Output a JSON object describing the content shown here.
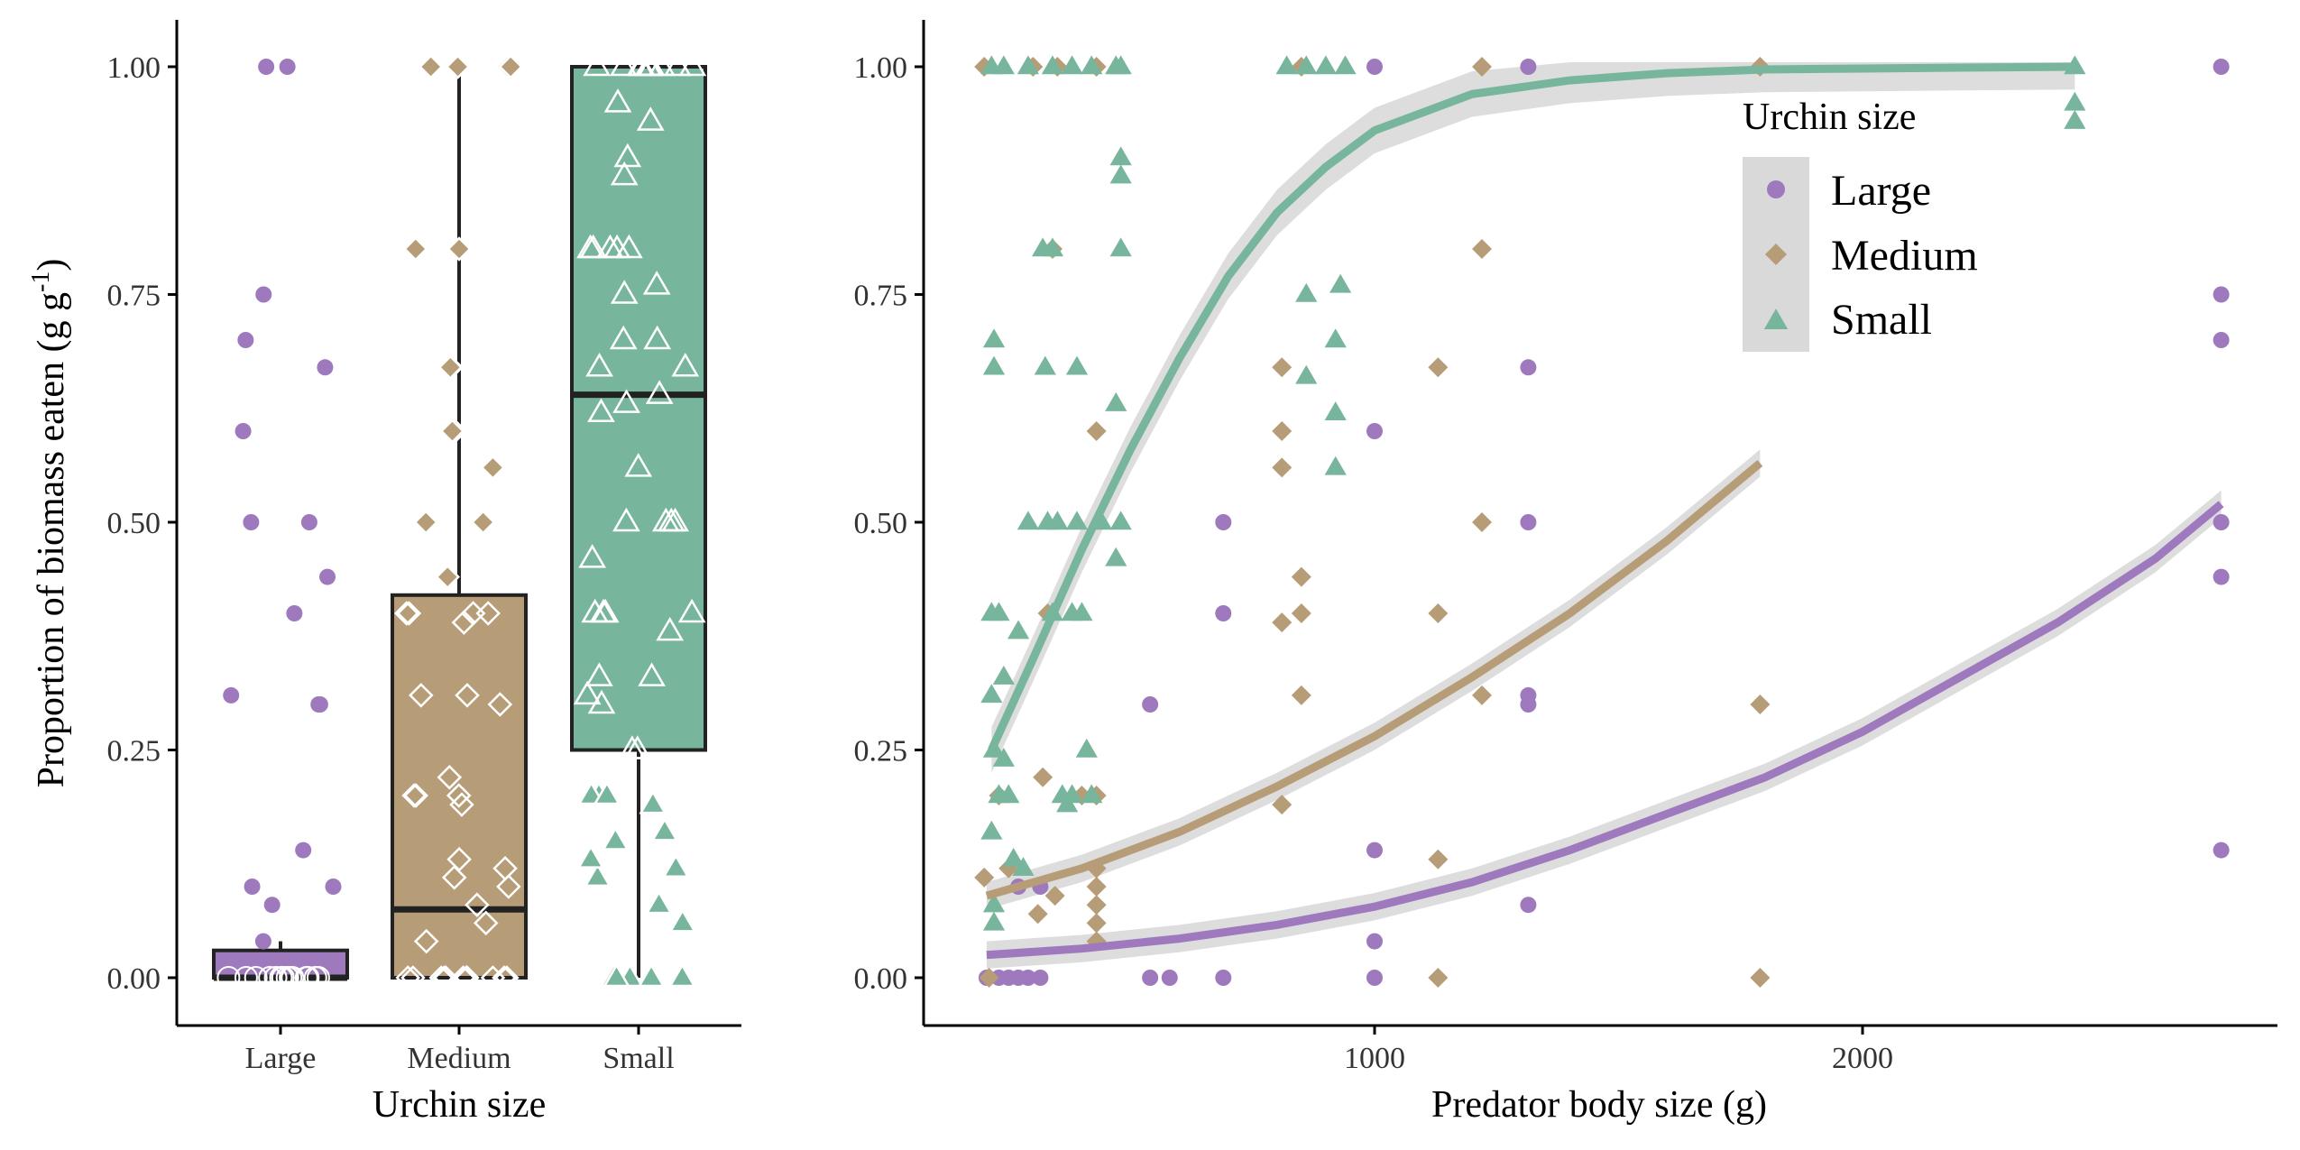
{
  "colors": {
    "Large": "#9e79bd",
    "Medium": "#b69d77",
    "Small": "#77b59c"
  },
  "chart_data": [
    {
      "type": "box",
      "xlabel": "Urchin size",
      "ylabel": "Proportion of biomass eaten (g g",
      "ylabel_sup": "-1",
      "ylabel_close": ")",
      "ylim": [
        0,
        1
      ],
      "yticks": [
        "0.00",
        "0.25",
        "0.50",
        "0.75",
        "1.00"
      ],
      "categories": [
        "Large",
        "Medium",
        "Small"
      ],
      "boxes": [
        {
          "name": "Large",
          "min": 0,
          "q1": 0,
          "median": 0,
          "q3": 0.03,
          "max": 0.04
        },
        {
          "name": "Medium",
          "min": 0,
          "q1": 0,
          "median": 0.075,
          "q3": 0.42,
          "max": 1.0
        },
        {
          "name": "Small",
          "min": 0,
          "q1": 0.25,
          "median": 0.64,
          "q3": 1.0,
          "max": 1.0
        }
      ],
      "points": {
        "Large": [
          0,
          0,
          0,
          0,
          0,
          0,
          0,
          0,
          0,
          0,
          0,
          0,
          0,
          0,
          0,
          0.04,
          0.08,
          0.1,
          0.1,
          0.14,
          0.3,
          0.3,
          0.31,
          0.4,
          0.44,
          0.5,
          0.5,
          0.6,
          0.67,
          0.7,
          0.75,
          1.0,
          1.0
        ],
        "Medium": [
          0,
          0,
          0,
          0,
          0,
          0,
          0,
          0,
          0,
          0,
          0,
          0,
          0,
          0.04,
          0.06,
          0.08,
          0.1,
          0.11,
          0.12,
          0.13,
          0.19,
          0.2,
          0.2,
          0.2,
          0.22,
          0.3,
          0.31,
          0.31,
          0.39,
          0.4,
          0.4,
          0.4,
          0.4,
          0.44,
          0.5,
          0.5,
          0.5,
          0.56,
          0.6,
          0.6,
          0.67,
          0.67,
          0.8,
          0.8,
          1.0,
          1.0,
          1.0,
          1.0
        ],
        "Small": [
          0,
          0,
          0,
          0,
          0,
          0.06,
          0.08,
          0.11,
          0.12,
          0.13,
          0.15,
          0.16,
          0.19,
          0.2,
          0.2,
          0.2,
          0.25,
          0.25,
          0.3,
          0.31,
          0.33,
          0.33,
          0.38,
          0.4,
          0.4,
          0.4,
          0.4,
          0.46,
          0.5,
          0.5,
          0.5,
          0.5,
          0.56,
          0.62,
          0.63,
          0.64,
          0.67,
          0.67,
          0.7,
          0.7,
          0.75,
          0.76,
          0.8,
          0.8,
          0.8,
          0.8,
          0.8,
          0.88,
          0.9,
          0.94,
          0.96,
          1.0,
          1.0,
          1.0,
          1.0,
          1.0,
          1.0,
          1.0,
          1.0,
          1.0,
          1.0
        ]
      }
    },
    {
      "type": "scatter",
      "xlabel": "Predator body size (g)",
      "ylabel": "",
      "xlim": [
        130,
        2850
      ],
      "ylim": [
        0,
        1
      ],
      "xticks": [
        "1000",
        "2000"
      ],
      "xtick_values": [
        1000,
        2000
      ],
      "yticks": [
        "0.00",
        "0.25",
        "0.50",
        "0.75",
        "1.00"
      ],
      "legend": {
        "title": "Urchin size",
        "position": "top-right",
        "entries": [
          "Large",
          "Medium",
          "Small"
        ]
      },
      "series": [
        {
          "name": "Large",
          "marker": "circle",
          "points": [
            [
              205,
              0
            ],
            [
              230,
              0
            ],
            [
              250,
              0
            ],
            [
              270,
              0
            ],
            [
              290,
              0
            ],
            [
              315,
              0
            ],
            [
              270,
              0.1
            ],
            [
              315,
              0.1
            ],
            [
              540,
              0.3
            ],
            [
              540,
              0
            ],
            [
              580,
              0
            ],
            [
              690,
              0.5
            ],
            [
              690,
              0.4
            ],
            [
              690,
              0
            ],
            [
              1000,
              1.0
            ],
            [
              1000,
              0.6
            ],
            [
              1000,
              0.14
            ],
            [
              1000,
              0.04
            ],
            [
              1000,
              0
            ],
            [
              1315,
              1.0
            ],
            [
              1315,
              0.67
            ],
            [
              1315,
              0.5
            ],
            [
              1315,
              0.31
            ],
            [
              1315,
              0.3
            ],
            [
              1315,
              0.08
            ],
            [
              2735,
              1.0
            ],
            [
              2735,
              0.75
            ],
            [
              2735,
              0.7
            ],
            [
              2735,
              0.5
            ],
            [
              2735,
              0.44
            ],
            [
              2735,
              0.14
            ]
          ],
          "fit": [
            [
              205,
              0.025
            ],
            [
              400,
              0.032
            ],
            [
              600,
              0.043
            ],
            [
              800,
              0.058
            ],
            [
              1000,
              0.078
            ],
            [
              1200,
              0.105
            ],
            [
              1400,
              0.14
            ],
            [
              1600,
              0.18
            ],
            [
              1800,
              0.22
            ],
            [
              2000,
              0.27
            ],
            [
              2200,
              0.33
            ],
            [
              2400,
              0.39
            ],
            [
              2600,
              0.46
            ],
            [
              2735,
              0.52
            ]
          ]
        },
        {
          "name": "Medium",
          "marker": "diamond",
          "points": [
            [
              200,
              1.0
            ],
            [
              200,
              0.11
            ],
            [
              210,
              0
            ],
            [
              230,
              0.2
            ],
            [
              250,
              0.12
            ],
            [
              300,
              1.0
            ],
            [
              310,
              0.07
            ],
            [
              320,
              0.22
            ],
            [
              330,
              0.4
            ],
            [
              340,
              0.8
            ],
            [
              345,
              0.09
            ],
            [
              350,
              1.0
            ],
            [
              400,
              0.2
            ],
            [
              430,
              0.6
            ],
            [
              430,
              0.2
            ],
            [
              430,
              0.12
            ],
            [
              430,
              0.1
            ],
            [
              430,
              0.08
            ],
            [
              430,
              0.06
            ],
            [
              430,
              0.04
            ],
            [
              430,
              1.0
            ],
            [
              810,
              0.67
            ],
            [
              810,
              0.6
            ],
            [
              810,
              0.56
            ],
            [
              810,
              0.39
            ],
            [
              810,
              0.19
            ],
            [
              850,
              1.0
            ],
            [
              850,
              0.44
            ],
            [
              850,
              0.4
            ],
            [
              850,
              0.31
            ],
            [
              1130,
              0.67
            ],
            [
              1130,
              0.4
            ],
            [
              1130,
              0.13
            ],
            [
              1130,
              0
            ],
            [
              1220,
              1.0
            ],
            [
              1220,
              0.8
            ],
            [
              1220,
              0.5
            ],
            [
              1220,
              0.31
            ],
            [
              1790,
              1.0
            ],
            [
              1790,
              0.3
            ],
            [
              1790,
              0
            ]
          ],
          "fit": [
            [
              205,
              0.09
            ],
            [
              400,
              0.12
            ],
            [
              600,
              0.16
            ],
            [
              800,
              0.21
            ],
            [
              1000,
              0.265
            ],
            [
              1200,
              0.33
            ],
            [
              1400,
              0.4
            ],
            [
              1600,
              0.48
            ],
            [
              1790,
              0.565
            ]
          ]
        },
        {
          "name": "Small",
          "marker": "triangle",
          "points": [
            [
              215,
              1.0
            ],
            [
              240,
              1.0
            ],
            [
              290,
              1.0
            ],
            [
              340,
              1.0
            ],
            [
              380,
              1.0
            ],
            [
              420,
              1.0
            ],
            [
              470,
              1.0
            ],
            [
              480,
              1.0
            ],
            [
              220,
              0.7
            ],
            [
              220,
              0.67
            ],
            [
              215,
              0.4
            ],
            [
              230,
              0.4
            ],
            [
              215,
              0.31
            ],
            [
              240,
              0.33
            ],
            [
              220,
              0.25
            ],
            [
              230,
              0.2
            ],
            [
              250,
              0.2
            ],
            [
              215,
              0.16
            ],
            [
              220,
              0.08
            ],
            [
              220,
              0.06
            ],
            [
              240,
              0.24
            ],
            [
              260,
              0.13
            ],
            [
              280,
              0.12
            ],
            [
              270,
              0.38
            ],
            [
              290,
              0.5
            ],
            [
              320,
              0.8
            ],
            [
              330,
              0.5
            ],
            [
              325,
              0.67
            ],
            [
              340,
              0.8
            ],
            [
              340,
              0.4
            ],
            [
              350,
              0.5
            ],
            [
              360,
              0.2
            ],
            [
              370,
              0.19
            ],
            [
              380,
              0.4
            ],
            [
              380,
              0.2
            ],
            [
              390,
              0.67
            ],
            [
              390,
              0.5
            ],
            [
              400,
              0.4
            ],
            [
              410,
              0.25
            ],
            [
              420,
              0.2
            ],
            [
              440,
              0.5
            ],
            [
              470,
              0.63
            ],
            [
              470,
              0.46
            ],
            [
              480,
              0.9
            ],
            [
              480,
              0.88
            ],
            [
              480,
              0.8
            ],
            [
              480,
              0.5
            ],
            [
              820,
              1.0
            ],
            [
              860,
              1.0
            ],
            [
              900,
              1.0
            ],
            [
              940,
              1.0
            ],
            [
              860,
              0.75
            ],
            [
              930,
              0.76
            ],
            [
              860,
              0.66
            ],
            [
              920,
              0.7
            ],
            [
              920,
              0.62
            ],
            [
              920,
              0.56
            ],
            [
              2435,
              1.0
            ],
            [
              2435,
              0.96
            ],
            [
              2435,
              0.94
            ]
          ],
          "fit": [
            [
              215,
              0.25
            ],
            [
              300,
              0.35
            ],
            [
              400,
              0.47
            ],
            [
              500,
              0.58
            ],
            [
              600,
              0.68
            ],
            [
              700,
              0.77
            ],
            [
              800,
              0.84
            ],
            [
              900,
              0.89
            ],
            [
              1000,
              0.93
            ],
            [
              1200,
              0.97
            ],
            [
              1400,
              0.985
            ],
            [
              1600,
              0.993
            ],
            [
              1800,
              0.997
            ],
            [
              2000,
              0.998
            ],
            [
              2200,
              0.999
            ],
            [
              2435,
              1.0
            ]
          ]
        }
      ]
    }
  ]
}
